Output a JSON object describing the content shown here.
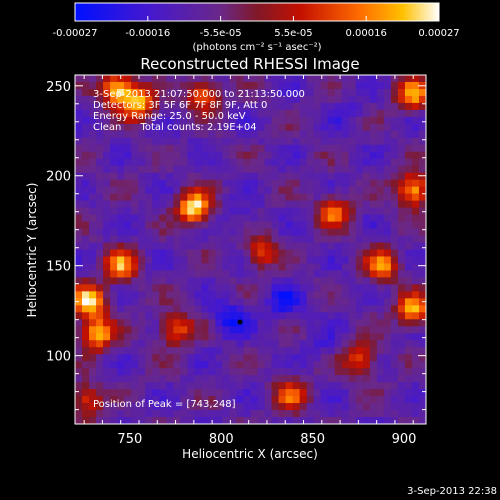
{
  "colorbar": {
    "tick_labels": [
      "-0.00027",
      "-0.00016",
      "-5.5e-05",
      "5.5e-05",
      "0.00016",
      "0.00027"
    ],
    "unit_label": "(photons cm⁻² s⁻¹ asec⁻²)",
    "colors": [
      "#0010ff",
      "#5020c0",
      "#6c2a8c",
      "#8c1818",
      "#c81000",
      "#ff6a00",
      "#ffc000",
      "#fff6d0",
      "#ffffff"
    ]
  },
  "annotations": {
    "time_range": "3-Sep-2013 21:07:50.000 to 21:13:50.000",
    "detectors": "Detectors: 3F 5F 6F 7F 8F 9F, Att 0",
    "energy": "Energy Range: 25.0 - 50.0 keV",
    "clean": "Clean      Total counts: 2.19E+04",
    "peak": "Position of Peak = [743,248]"
  },
  "footer": {
    "timestamp": "3-Sep-2013 22:38"
  },
  "chart_data": {
    "type": "heatmap",
    "title": "Reconstructed RHESSI Image",
    "xlabel": "Heliocentric X (arcsec)",
    "ylabel": "Heliocentric Y (arcsec)",
    "xlim": [
      720,
      912
    ],
    "ylim": [
      62,
      256
    ],
    "xticks": [
      750,
      800,
      850,
      900
    ],
    "yticks": [
      100,
      150,
      200,
      250
    ],
    "zlim": [
      -0.00027,
      0.00027
    ],
    "peak": [
      743,
      248
    ],
    "grid_cells": [
      50,
      50
    ],
    "hot_regions": [
      {
        "x": 785,
        "y": 182,
        "value": 0.00027
      },
      {
        "x": 743,
        "y": 248,
        "value": 0.00027
      },
      {
        "x": 728,
        "y": 130,
        "value": 0.00024
      },
      {
        "x": 732,
        "y": 112,
        "value": 0.00022
      },
      {
        "x": 745,
        "y": 150,
        "value": 0.00017
      },
      {
        "x": 755,
        "y": 240,
        "value": 0.0002
      },
      {
        "x": 790,
        "y": 245,
        "value": 0.00016
      },
      {
        "x": 775,
        "y": 115,
        "value": 0.00015
      },
      {
        "x": 822,
        "y": 158,
        "value": 0.00012
      },
      {
        "x": 905,
        "y": 192,
        "value": 0.00023
      },
      {
        "x": 905,
        "y": 125,
        "value": 0.0002
      },
      {
        "x": 905,
        "y": 245,
        "value": 0.00018
      },
      {
        "x": 862,
        "y": 180,
        "value": 0.00014
      },
      {
        "x": 888,
        "y": 150,
        "value": 0.00016
      },
      {
        "x": 838,
        "y": 78,
        "value": 0.00011
      },
      {
        "x": 876,
        "y": 98,
        "value": 0.00013
      },
      {
        "x": 726,
        "y": 75,
        "value": 0.00012
      }
    ],
    "cold_regions": [
      {
        "x": 835,
        "y": 130,
        "value": -0.00022
      },
      {
        "x": 805,
        "y": 120,
        "value": -0.00024
      },
      {
        "x": 812,
        "y": 175,
        "value": -0.00016
      },
      {
        "x": 870,
        "y": 235,
        "value": -0.00014
      },
      {
        "x": 855,
        "y": 105,
        "value": -0.00015
      },
      {
        "x": 780,
        "y": 220,
        "value": -0.0001
      }
    ]
  }
}
